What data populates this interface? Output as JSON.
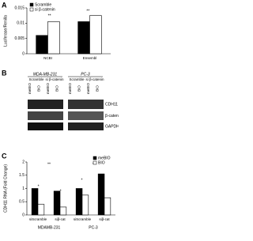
{
  "panel_labels": [
    "A",
    "B",
    "C"
  ],
  "chart_data": [
    {
      "type": "bar",
      "y_label": "Luciferase/Renilla",
      "categories": [
        "NCBI",
        "Ensembl"
      ],
      "series": [
        {
          "name": "Scramble",
          "color": "#000000",
          "values": [
            0.006,
            0.0105
          ]
        },
        {
          "name": "si β-catenin",
          "color": "#ffffff",
          "values": [
            0.0105,
            0.0125
          ]
        }
      ],
      "ylim": [
        0,
        0.015
      ],
      "yticks": [
        0,
        0.005,
        0.01,
        0.015
      ],
      "annotations": [
        "**",
        "**"
      ],
      "legend": "upper left"
    },
    {
      "type": "bar",
      "y_label": "CDH11 RNA (Fold Change)",
      "categories": [
        "siScramble",
        "siβ-cat",
        "siScramble",
        "siβ-cat"
      ],
      "groups": [
        "MDAMB-231",
        "PC-3"
      ],
      "series": [
        {
          "name": "meBIO",
          "color": "#000000",
          "values": [
            1.0,
            0.9,
            1.0,
            1.55
          ]
        },
        {
          "name": "BIO",
          "color": "#ffffff",
          "values": [
            0.4,
            0.3,
            0.75,
            0.65
          ]
        }
      ],
      "ylim": [
        0,
        2
      ],
      "yticks": [
        0,
        0.5,
        1,
        1.5,
        2
      ],
      "annotations": [
        "**",
        "*",
        "*",
        "*",
        "*"
      ],
      "legend": "upper right"
    }
  ],
  "blot": {
    "cell_lines": [
      "MDA-MB-231",
      "PC-3"
    ],
    "conditions": [
      "Scramble",
      "si β-catenin",
      "Scramble",
      "si β-catenin"
    ],
    "lanes": [
      "meBIO",
      "BIO",
      "meBIO",
      "BIO",
      "meBIO",
      "BIO",
      "meBIO",
      "BIO"
    ],
    "proteins": [
      "CDH11",
      "β-catenin",
      "GAPDH"
    ]
  }
}
